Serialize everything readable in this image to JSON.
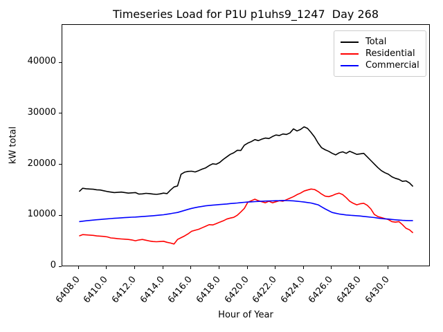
{
  "chart_data": {
    "type": "line",
    "title": "Timeseries Load for P1U p1uhs9_1247  Day 268",
    "xlabel": "Hour of Year",
    "ylabel": "kW total",
    "xlim": [
      6406.8,
      6433.0
    ],
    "ylim": [
      0,
      47500
    ],
    "grid": false,
    "legend_position": "upper right",
    "x_ticks": [
      6408,
      6410,
      6412,
      6414,
      6416,
      6418,
      6420,
      6422,
      6424,
      6426,
      6428,
      6430
    ],
    "x_tick_labels": [
      "6408.0",
      "6410.0",
      "6412.0",
      "6414.0",
      "6416.0",
      "6418.0",
      "6420.0",
      "6422.0",
      "6424.0",
      "6426.0",
      "6428.0",
      "6430.0"
    ],
    "y_ticks": [
      0,
      10000,
      20000,
      30000,
      40000
    ],
    "y_tick_labels": [
      "0",
      "10000",
      "20000",
      "30000",
      "40000"
    ],
    "x_start": 6408.0,
    "x_step": 0.25,
    "series": [
      {
        "name": "Total",
        "color": "#000000",
        "values": [
          14800,
          15450,
          15350,
          15300,
          15250,
          15150,
          15100,
          14950,
          14800,
          14700,
          14600,
          14650,
          14700,
          14600,
          14500,
          14550,
          14600,
          14300,
          14350,
          14450,
          14400,
          14300,
          14250,
          14350,
          14500,
          14400,
          15100,
          15700,
          15900,
          18200,
          18600,
          18750,
          18800,
          18650,
          18900,
          19200,
          19450,
          19900,
          20250,
          20150,
          20500,
          21100,
          21600,
          22100,
          22400,
          22900,
          22850,
          23900,
          24300,
          24600,
          25000,
          24800,
          25100,
          25300,
          25200,
          25600,
          25900,
          25800,
          26100,
          26000,
          26300,
          27100,
          26700,
          27000,
          27500,
          27200,
          26400,
          25500,
          24300,
          23400,
          23000,
          22700,
          22300,
          22000,
          22400,
          22600,
          22300,
          22700,
          22400,
          22100,
          22200,
          22300,
          21600,
          20900,
          20200,
          19500,
          18900,
          18500,
          18200,
          17700,
          17400,
          17200,
          16800,
          16900,
          16500,
          15800
        ]
      },
      {
        "name": "Residential",
        "color": "#ff0000",
        "values": [
          6100,
          6350,
          6300,
          6250,
          6200,
          6100,
          6050,
          6000,
          5900,
          5700,
          5650,
          5550,
          5500,
          5450,
          5400,
          5300,
          5150,
          5300,
          5400,
          5250,
          5100,
          5000,
          4950,
          5000,
          5050,
          4850,
          4700,
          4500,
          5400,
          5750,
          6100,
          6500,
          7000,
          7200,
          7400,
          7700,
          8000,
          8300,
          8250,
          8500,
          8800,
          9050,
          9400,
          9600,
          9750,
          10150,
          10800,
          11500,
          12700,
          13000,
          13300,
          13000,
          12800,
          12600,
          12900,
          12600,
          12800,
          13000,
          12900,
          13200,
          13500,
          13800,
          14200,
          14500,
          14900,
          15100,
          15300,
          15200,
          14800,
          14300,
          13900,
          13800,
          14000,
          14300,
          14500,
          14200,
          13600,
          12900,
          12500,
          12200,
          12400,
          12500,
          12100,
          11400,
          10300,
          9900,
          9700,
          9500,
          9300,
          8900,
          8800,
          8900,
          8300,
          7600,
          7300,
          6700
        ]
      },
      {
        "name": "Commercial",
        "color": "#0000ff",
        "values": [
          8900,
          8980,
          9060,
          9130,
          9200,
          9270,
          9330,
          9390,
          9450,
          9500,
          9550,
          9600,
          9650,
          9690,
          9730,
          9770,
          9800,
          9850,
          9900,
          9950,
          10000,
          10060,
          10120,
          10190,
          10250,
          10350,
          10470,
          10590,
          10700,
          10900,
          11100,
          11300,
          11500,
          11650,
          11780,
          11890,
          12000,
          12070,
          12130,
          12190,
          12250,
          12310,
          12370,
          12440,
          12500,
          12560,
          12630,
          12690,
          12750,
          12790,
          12830,
          12870,
          12900,
          12930,
          12960,
          12980,
          13000,
          13020,
          13050,
          13030,
          13000,
          12980,
          12900,
          12830,
          12750,
          12650,
          12550,
          12380,
          12200,
          11800,
          11400,
          11050,
          10700,
          10550,
          10400,
          10300,
          10200,
          10150,
          10100,
          10050,
          10000,
          9920,
          9850,
          9770,
          9700,
          9600,
          9500,
          9450,
          9400,
          9330,
          9250,
          9200,
          9150,
          9120,
          9100,
          9100
        ]
      }
    ]
  }
}
